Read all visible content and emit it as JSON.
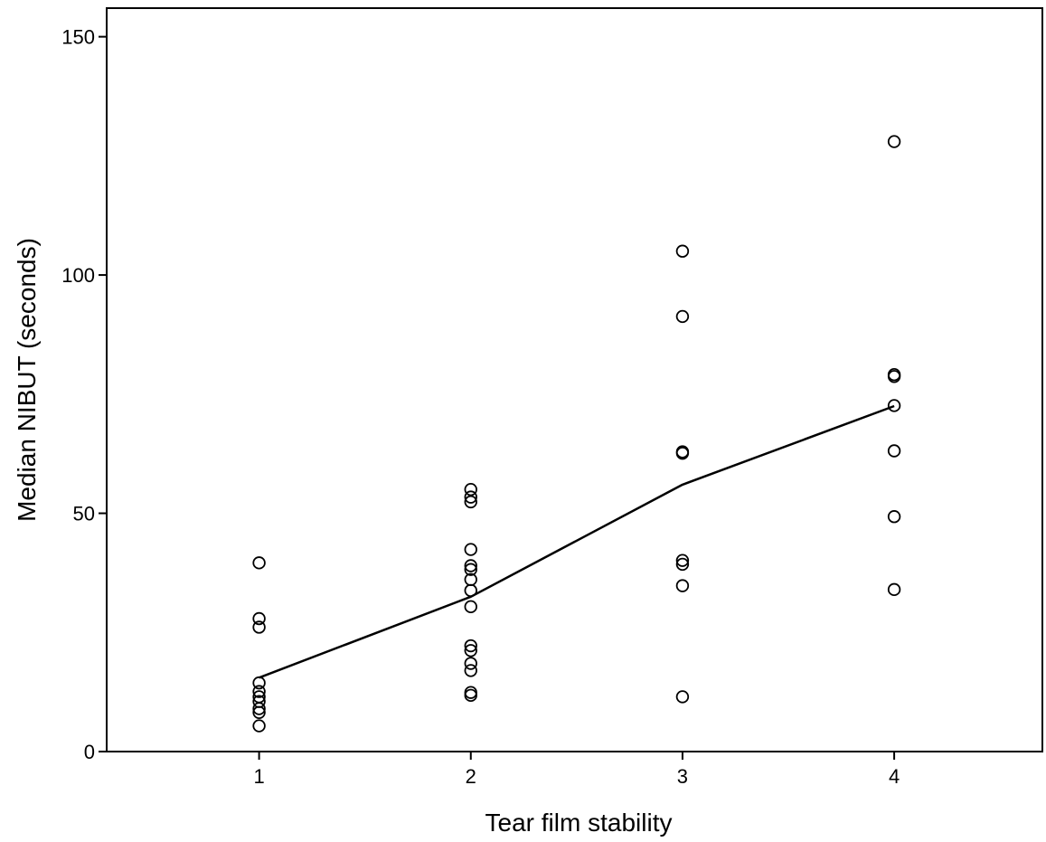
{
  "chart_data": {
    "type": "scatter",
    "title": "",
    "xlabel": "Tear film stability",
    "ylabel": "Median NIBUT (seconds)",
    "xlim": [
      0.28,
      4.7
    ],
    "ylim": [
      0,
      156
    ],
    "x_ticks": [
      1,
      2,
      3,
      4
    ],
    "y_ticks": [
      0,
      50,
      100,
      150
    ],
    "grid": false,
    "legend": "none",
    "series": [
      {
        "type": "scatter",
        "marker": "open-circle",
        "points": [
          {
            "x": 1,
            "y": 39.6
          },
          {
            "x": 1,
            "y": 27.9
          },
          {
            "x": 1,
            "y": 26.1
          },
          {
            "x": 1,
            "y": 14.4
          },
          {
            "x": 1,
            "y": 12.6
          },
          {
            "x": 1,
            "y": 11.5
          },
          {
            "x": 1,
            "y": 10.5
          },
          {
            "x": 1,
            "y": 9.0
          },
          {
            "x": 1,
            "y": 8.2
          },
          {
            "x": 1,
            "y": 5.4
          },
          {
            "x": 2,
            "y": 55.0
          },
          {
            "x": 2,
            "y": 53.4
          },
          {
            "x": 2,
            "y": 52.4
          },
          {
            "x": 2,
            "y": 42.4
          },
          {
            "x": 2,
            "y": 39.0
          },
          {
            "x": 2,
            "y": 38.2
          },
          {
            "x": 2,
            "y": 36.1
          },
          {
            "x": 2,
            "y": 33.8
          },
          {
            "x": 2,
            "y": 30.4
          },
          {
            "x": 2,
            "y": 22.2
          },
          {
            "x": 2,
            "y": 21.2
          },
          {
            "x": 2,
            "y": 18.5
          },
          {
            "x": 2,
            "y": 17.0
          },
          {
            "x": 2,
            "y": 12.4
          },
          {
            "x": 2,
            "y": 11.8
          },
          {
            "x": 3,
            "y": 105.0
          },
          {
            "x": 3,
            "y": 91.3
          },
          {
            "x": 3,
            "y": 62.9
          },
          {
            "x": 3,
            "y": 62.6
          },
          {
            "x": 3,
            "y": 40.1
          },
          {
            "x": 3,
            "y": 39.3
          },
          {
            "x": 3,
            "y": 34.8
          },
          {
            "x": 3,
            "y": 11.5
          },
          {
            "x": 4,
            "y": 128.0
          },
          {
            "x": 4,
            "y": 79.1
          },
          {
            "x": 4,
            "y": 78.7
          },
          {
            "x": 4,
            "y": 72.6
          },
          {
            "x": 4,
            "y": 63.1
          },
          {
            "x": 4,
            "y": 49.3
          },
          {
            "x": 4,
            "y": 34.0
          }
        ]
      },
      {
        "type": "line",
        "points": [
          {
            "x": 1,
            "y": 15.5
          },
          {
            "x": 2,
            "y": 32.5
          },
          {
            "x": 3,
            "y": 56.0
          },
          {
            "x": 4,
            "y": 72.5
          }
        ]
      }
    ]
  }
}
